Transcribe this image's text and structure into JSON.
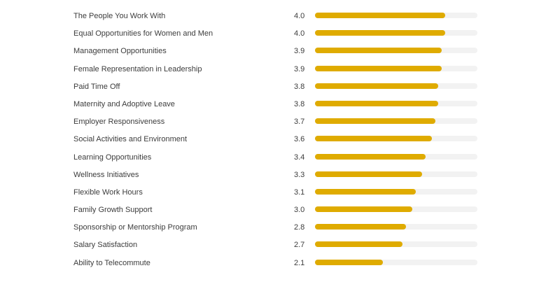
{
  "chart_data": {
    "type": "bar",
    "orientation": "horizontal",
    "title": "",
    "xlabel": "",
    "ylabel": "",
    "xlim": [
      0,
      5
    ],
    "grid": false,
    "legend": "none",
    "bar_color": "#dfab00",
    "track_color": "#f2f2f2",
    "categories": [
      "The People You Work With",
      "Equal Opportunities for Women and Men",
      "Management Opportunities",
      "Female Representation in Leadership",
      "Paid Time Off",
      "Maternity and Adoptive Leave",
      "Employer Responsiveness",
      "Social Activities and Environment",
      "Learning Opportunities",
      "Wellness Initiatives",
      "Flexible Work Hours",
      "Family Growth Support",
      "Sponsorship or Mentorship Program",
      "Salary Satisfaction",
      "Ability to Telecommute"
    ],
    "values": [
      4.0,
      4.0,
      3.9,
      3.9,
      3.8,
      3.8,
      3.7,
      3.6,
      3.4,
      3.3,
      3.1,
      3.0,
      2.8,
      2.7,
      2.1
    ],
    "value_labels": [
      "4.0",
      "4.0",
      "3.9",
      "3.9",
      "3.8",
      "3.8",
      "3.7",
      "3.6",
      "3.4",
      "3.3",
      "3.1",
      "3.0",
      "2.8",
      "2.7",
      "2.1"
    ]
  }
}
